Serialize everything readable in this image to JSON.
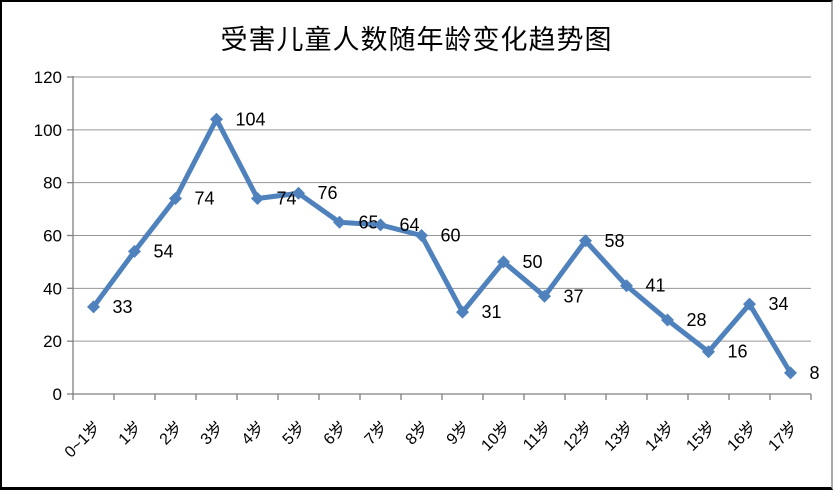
{
  "chart_data": {
    "type": "line",
    "title": "受害儿童人数随年龄变化趋势图",
    "categories": [
      "0~1岁",
      "1岁",
      "2岁",
      "3岁",
      "4岁",
      "5岁",
      "6岁",
      "7岁",
      "8岁",
      "9岁",
      "10岁",
      "11岁",
      "12岁",
      "13岁",
      "14岁",
      "15岁",
      "16岁",
      "17岁"
    ],
    "values": [
      33,
      54,
      74,
      104,
      74,
      76,
      65,
      64,
      60,
      31,
      50,
      37,
      58,
      41,
      28,
      16,
      34,
      8
    ],
    "xlabel": "",
    "ylabel": "",
    "ylim": [
      0,
      120
    ],
    "yticks": [
      0,
      20,
      40,
      60,
      80,
      100,
      120
    ],
    "grid": true,
    "legend_position": "none",
    "data_labels_visible": true,
    "marker": "diamond",
    "colors": {
      "line": "#4F81BD",
      "marker": "#4F81BD",
      "gridline": "#969696",
      "axis": "#808080",
      "text": "#000000",
      "background": "#FFFFFF"
    }
  }
}
